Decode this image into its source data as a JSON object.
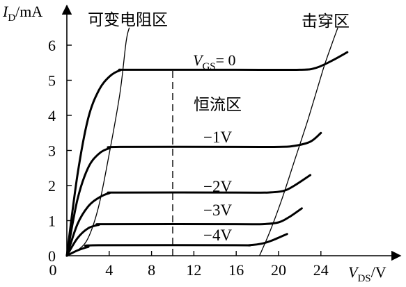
{
  "chart_data": {
    "type": "line",
    "x_axis": {
      "label_main": "V",
      "label_sub": "DS",
      "label_unit": "/V",
      "ticks": [
        0,
        4,
        8,
        12,
        16,
        20,
        24
      ],
      "range": [
        0,
        25.5
      ]
    },
    "y_axis": {
      "label_main": "I",
      "label_sub": "D",
      "label_unit": "/mA",
      "ticks": [
        0,
        1,
        2,
        3,
        4,
        5,
        6
      ],
      "range": [
        0,
        6.9
      ]
    },
    "series": [
      {
        "name": "V_GS = 0",
        "label_main": "V",
        "label_sub": "GS",
        "label_rest": "= 0",
        "points": [
          [
            0,
            0
          ],
          [
            1,
            2.3
          ],
          [
            2,
            3.9
          ],
          [
            3,
            4.7
          ],
          [
            4,
            5.1
          ],
          [
            5,
            5.28
          ],
          [
            6,
            5.3
          ],
          [
            16,
            5.3
          ],
          [
            22,
            5.3
          ],
          [
            23.5,
            5.35
          ],
          [
            25,
            5.55
          ],
          [
            26.5,
            5.8
          ]
        ]
      },
      {
        "name": "-1V",
        "label": "−1V",
        "points": [
          [
            0,
            0
          ],
          [
            1,
            1.6
          ],
          [
            2,
            2.5
          ],
          [
            3,
            2.9
          ],
          [
            4,
            3.06
          ],
          [
            5,
            3.1
          ],
          [
            16,
            3.1
          ],
          [
            20,
            3.1
          ],
          [
            21.5,
            3.13
          ],
          [
            23,
            3.25
          ],
          [
            24,
            3.5
          ]
        ]
      },
      {
        "name": "-2V",
        "label": "−2V",
        "points": [
          [
            0,
            0
          ],
          [
            1,
            0.9
          ],
          [
            2,
            1.4
          ],
          [
            3,
            1.65
          ],
          [
            4,
            1.78
          ],
          [
            5,
            1.8
          ],
          [
            16,
            1.8
          ],
          [
            19,
            1.8
          ],
          [
            20.5,
            1.85
          ],
          [
            21.5,
            2.0
          ],
          [
            23,
            2.3
          ]
        ]
      },
      {
        "name": "-3V",
        "label": "−3V",
        "points": [
          [
            0,
            0
          ],
          [
            1,
            0.5
          ],
          [
            2,
            0.78
          ],
          [
            3,
            0.88
          ],
          [
            4,
            0.9
          ],
          [
            16,
            0.9
          ],
          [
            18.5,
            0.9
          ],
          [
            20,
            0.95
          ],
          [
            21,
            1.1
          ],
          [
            22.2,
            1.35
          ]
        ]
      },
      {
        "name": "-4V",
        "label": "−4V",
        "points": [
          [
            0,
            0
          ],
          [
            1,
            0.15
          ],
          [
            2,
            0.25
          ],
          [
            3,
            0.3
          ],
          [
            16,
            0.3
          ],
          [
            17.2,
            0.3
          ],
          [
            18.5,
            0.35
          ],
          [
            19.5,
            0.45
          ],
          [
            20.8,
            0.62
          ]
        ]
      }
    ],
    "annotations": {
      "variable_resistance_region": "可变电阻区",
      "constant_current_region": "恒流区",
      "breakdown_region": "击穿区"
    },
    "divider_x": 10,
    "ohmic_boundary": [
      [
        0,
        0
      ],
      [
        1,
        0.15
      ],
      [
        2,
        0.5
      ],
      [
        3,
        1.4
      ],
      [
        4,
        2.9
      ],
      [
        5,
        4.6
      ],
      [
        5.6,
        6.1
      ],
      [
        5.9,
        6.5
      ]
    ],
    "breakdown_boundary": [
      [
        18.2,
        0
      ],
      [
        19.2,
        0.7
      ],
      [
        20.3,
        1.6
      ],
      [
        21.5,
        2.7
      ],
      [
        22.8,
        3.9
      ],
      [
        24.2,
        5.3
      ],
      [
        25,
        6.0
      ],
      [
        25.6,
        6.5
      ]
    ],
    "grid": false
  }
}
